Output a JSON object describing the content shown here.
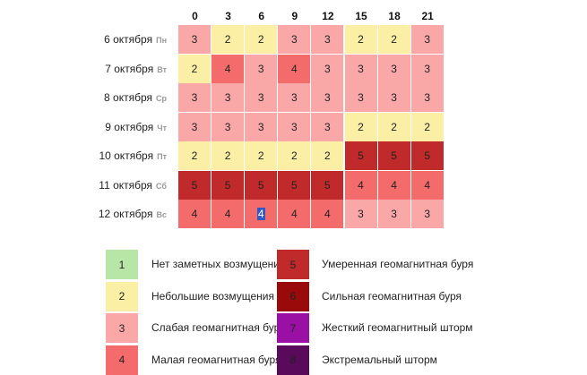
{
  "chart_data": {
    "type": "heatmap",
    "hours": [
      "0",
      "3",
      "6",
      "9",
      "12",
      "15",
      "18",
      "21"
    ],
    "rows": [
      {
        "date": "6 октября",
        "dow": "Пн",
        "values": [
          3,
          2,
          2,
          3,
          3,
          2,
          2,
          3
        ]
      },
      {
        "date": "7 октября",
        "dow": "Вт",
        "values": [
          2,
          4,
          3,
          4,
          3,
          3,
          3,
          3
        ]
      },
      {
        "date": "8 октября",
        "dow": "Ср",
        "values": [
          3,
          3,
          3,
          3,
          3,
          3,
          3,
          3
        ]
      },
      {
        "date": "9 октября",
        "dow": "Чт",
        "values": [
          3,
          3,
          3,
          3,
          3,
          2,
          2,
          2
        ]
      },
      {
        "date": "10 октября",
        "dow": "Пт",
        "values": [
          2,
          2,
          2,
          2,
          2,
          5,
          5,
          5
        ]
      },
      {
        "date": "11 октября",
        "dow": "Сб",
        "values": [
          5,
          5,
          5,
          5,
          5,
          4,
          4,
          4
        ]
      },
      {
        "date": "12 октября",
        "dow": "Вс",
        "values": [
          4,
          4,
          4,
          4,
          4,
          3,
          3,
          3
        ]
      }
    ],
    "selected_cell": {
      "row": 6,
      "col": 2
    },
    "levels": [
      {
        "value": "1",
        "label": "Нет заметных возмущений",
        "color": "#b8e6a6"
      },
      {
        "value": "2",
        "label": "Небольшие возмущения",
        "color": "#fbeea5"
      },
      {
        "value": "3",
        "label": "Слабая геомагнитная буря",
        "color": "#f9a7a7"
      },
      {
        "value": "4",
        "label": "Малая геомагнитная буря",
        "color": "#f36b6b"
      },
      {
        "value": "5",
        "label": "Умеренная геомагнитная буря",
        "color": "#c02a2a"
      },
      {
        "value": "6",
        "label": "Сильная геомагнитная буря",
        "color": "#9b0a0a"
      },
      {
        "value": "7",
        "label": "Жесткий геомагнитный шторм",
        "color": "#9a0fa4"
      },
      {
        "value": "8",
        "label": "Экстремальный шторм",
        "color": "#5a0a5a"
      }
    ]
  }
}
